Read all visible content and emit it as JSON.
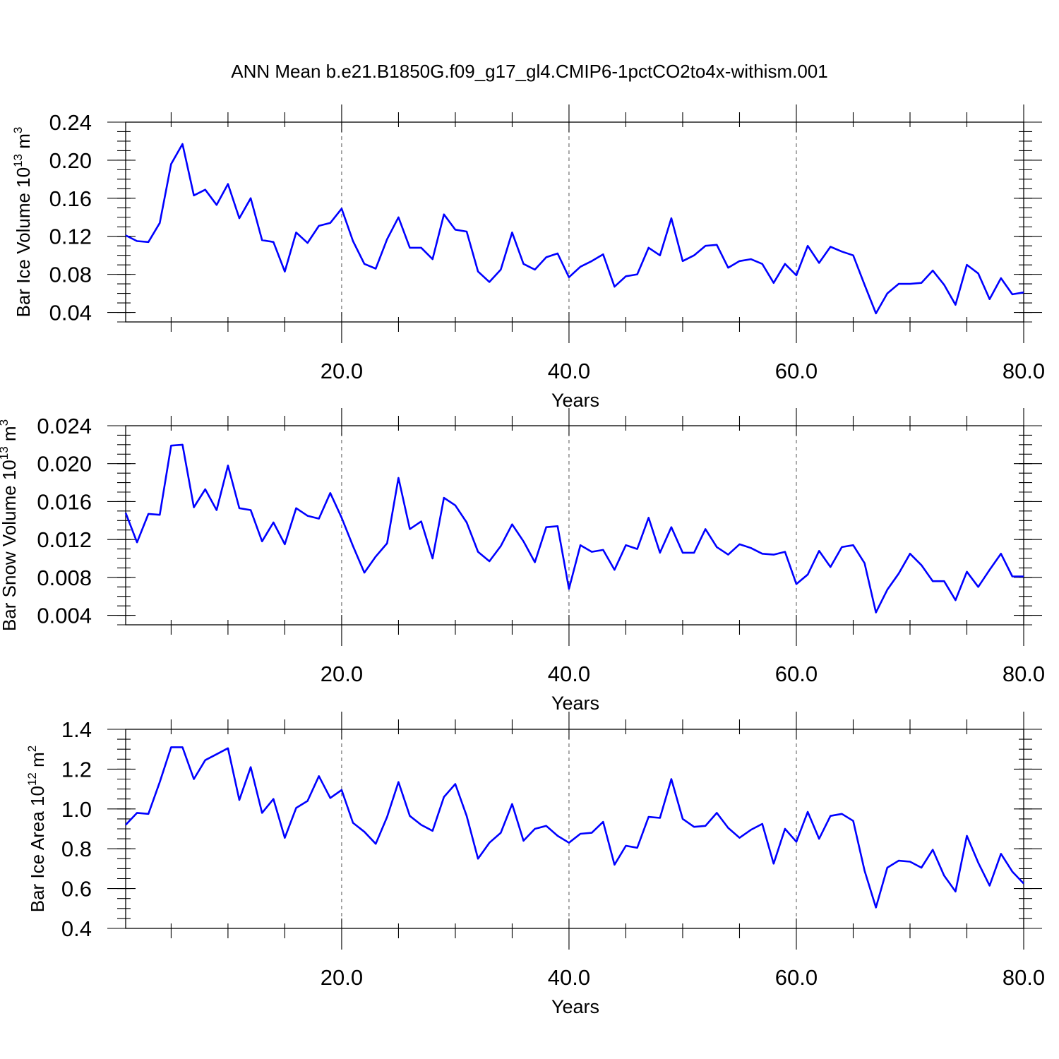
{
  "title": "ANN Mean b.e21.B1850G.f09_g17_gl4.CMIP6-1pctCO2to4x-withism.001",
  "chart_data": [
    {
      "type": "line",
      "ylabel": {
        "main": "Bar Ice Volume 10",
        "exp": "13",
        "unit": " m",
        "unit_exp": "3"
      },
      "xlabel": "Years",
      "xlim": [
        1,
        80
      ],
      "ylim": [
        0.03,
        0.24
      ],
      "yticks": [
        0.04,
        0.08,
        0.12,
        0.16,
        0.2,
        0.24
      ],
      "ytick_labels": [
        "0.04",
        "0.08",
        "0.12",
        "0.16",
        "0.20",
        "0.24"
      ],
      "yminor_step": 0.01,
      "xticks": [
        20,
        40,
        60,
        80
      ],
      "xtick_labels": [
        "20.0",
        "40.0",
        "60.0",
        "80.0"
      ],
      "grid_x": [
        20,
        40,
        60
      ],
      "color": "#0000ff",
      "x": [
        1,
        2,
        3,
        4,
        5,
        6,
        7,
        8,
        9,
        10,
        11,
        12,
        13,
        14,
        15,
        16,
        17,
        18,
        19,
        20,
        21,
        22,
        23,
        24,
        25,
        26,
        27,
        28,
        29,
        30,
        31,
        32,
        33,
        34,
        35,
        36,
        37,
        38,
        39,
        40,
        41,
        42,
        43,
        44,
        45,
        46,
        47,
        48,
        49,
        50,
        51,
        52,
        53,
        54,
        55,
        56,
        57,
        58,
        59,
        60,
        61,
        62,
        63,
        64,
        65,
        66,
        67,
        68,
        69,
        70,
        71,
        72,
        73,
        74,
        75,
        76,
        77,
        78,
        79,
        80
      ],
      "values": [
        0.121,
        0.115,
        0.114,
        0.134,
        0.196,
        0.217,
        0.163,
        0.169,
        0.153,
        0.175,
        0.139,
        0.16,
        0.116,
        0.114,
        0.083,
        0.124,
        0.113,
        0.131,
        0.134,
        0.149,
        0.115,
        0.091,
        0.086,
        0.117,
        0.14,
        0.108,
        0.108,
        0.096,
        0.143,
        0.127,
        0.125,
        0.083,
        0.072,
        0.085,
        0.124,
        0.091,
        0.085,
        0.098,
        0.102,
        0.077,
        0.088,
        0.094,
        0.101,
        0.067,
        0.078,
        0.08,
        0.108,
        0.1,
        0.139,
        0.094,
        0.1,
        0.11,
        0.111,
        0.087,
        0.094,
        0.096,
        0.091,
        0.071,
        0.091,
        0.079,
        0.11,
        0.092,
        0.109,
        0.104,
        0.1,
        0.069,
        0.039,
        0.06,
        0.07,
        0.07,
        0.071,
        0.084,
        0.069,
        0.048,
        0.09,
        0.081,
        0.054,
        0.076,
        0.059,
        0.061
      ]
    },
    {
      "type": "line",
      "ylabel": {
        "main": "Bar Snow Volume 10",
        "exp": "13",
        "unit": " m",
        "unit_exp": "3"
      },
      "xlabel": "Years",
      "xlim": [
        1,
        80
      ],
      "ylim": [
        0.003,
        0.024
      ],
      "yticks": [
        0.004,
        0.008,
        0.012,
        0.016,
        0.02,
        0.024
      ],
      "ytick_labels": [
        "0.004",
        "0.008",
        "0.012",
        "0.016",
        "0.020",
        "0.024"
      ],
      "yminor_step": 0.001,
      "xticks": [
        20,
        40,
        60,
        80
      ],
      "xtick_labels": [
        "20.0",
        "40.0",
        "60.0",
        "80.0"
      ],
      "grid_x": [
        20,
        40,
        60
      ],
      "color": "#0000ff",
      "x": [
        1,
        2,
        3,
        4,
        5,
        6,
        7,
        8,
        9,
        10,
        11,
        12,
        13,
        14,
        15,
        16,
        17,
        18,
        19,
        20,
        21,
        22,
        23,
        24,
        25,
        26,
        27,
        28,
        29,
        30,
        31,
        32,
        33,
        34,
        35,
        36,
        37,
        38,
        39,
        40,
        41,
        42,
        43,
        44,
        45,
        46,
        47,
        48,
        49,
        50,
        51,
        52,
        53,
        54,
        55,
        56,
        57,
        58,
        59,
        60,
        61,
        62,
        63,
        64,
        65,
        66,
        67,
        68,
        69,
        70,
        71,
        72,
        73,
        74,
        75,
        76,
        77,
        78,
        79,
        80
      ],
      "values": [
        0.0148,
        0.0117,
        0.0147,
        0.0146,
        0.0219,
        0.022,
        0.0154,
        0.0173,
        0.0151,
        0.0198,
        0.0153,
        0.0151,
        0.0118,
        0.0138,
        0.0115,
        0.0153,
        0.0145,
        0.0142,
        0.0169,
        0.0143,
        0.0113,
        0.0085,
        0.0102,
        0.0116,
        0.0185,
        0.0131,
        0.0139,
        0.01,
        0.0164,
        0.0156,
        0.0138,
        0.0107,
        0.0097,
        0.0113,
        0.0136,
        0.0118,
        0.0096,
        0.0133,
        0.0134,
        0.0068,
        0.0114,
        0.0107,
        0.0109,
        0.0088,
        0.0114,
        0.011,
        0.0143,
        0.0106,
        0.0133,
        0.0106,
        0.0106,
        0.0131,
        0.0112,
        0.0104,
        0.0115,
        0.0111,
        0.0105,
        0.0104,
        0.0107,
        0.0073,
        0.0083,
        0.0108,
        0.0091,
        0.0112,
        0.0114,
        0.0095,
        0.0043,
        0.0067,
        0.0084,
        0.0105,
        0.0093,
        0.0076,
        0.0076,
        0.0056,
        0.0086,
        0.007,
        0.0088,
        0.0105,
        0.0081,
        0.0081
      ]
    },
    {
      "type": "line",
      "ylabel": {
        "main": "Bar Ice Area 10",
        "exp": "12",
        "unit": " m",
        "unit_exp": "2"
      },
      "xlabel": "Years",
      "xlim": [
        1,
        80
      ],
      "ylim": [
        0.4,
        1.4
      ],
      "yticks": [
        0.4,
        0.6,
        0.8,
        1.0,
        1.2,
        1.4
      ],
      "ytick_labels": [
        "0.4",
        "0.6",
        "0.8",
        "1.0",
        "1.2",
        "1.4"
      ],
      "yminor_step": 0.05,
      "xticks": [
        20,
        40,
        60,
        80
      ],
      "xtick_labels": [
        "20.0",
        "40.0",
        "60.0",
        "80.0"
      ],
      "grid_x": [
        20,
        40,
        60
      ],
      "color": "#0000ff",
      "x": [
        1,
        2,
        3,
        4,
        5,
        6,
        7,
        8,
        9,
        10,
        11,
        12,
        13,
        14,
        15,
        16,
        17,
        18,
        19,
        20,
        21,
        22,
        23,
        24,
        25,
        26,
        27,
        28,
        29,
        30,
        31,
        32,
        33,
        34,
        35,
        36,
        37,
        38,
        39,
        40,
        41,
        42,
        43,
        44,
        45,
        46,
        47,
        48,
        49,
        50,
        51,
        52,
        53,
        54,
        55,
        56,
        57,
        58,
        59,
        60,
        61,
        62,
        63,
        64,
        65,
        66,
        67,
        68,
        69,
        70,
        71,
        72,
        73,
        74,
        75,
        76,
        77,
        78,
        79,
        80
      ],
      "values": [
        0.92,
        0.98,
        0.975,
        1.135,
        1.31,
        1.31,
        1.15,
        1.245,
        1.275,
        1.305,
        1.045,
        1.21,
        0.98,
        1.05,
        0.855,
        1.005,
        1.04,
        1.165,
        1.055,
        1.095,
        0.93,
        0.885,
        0.825,
        0.96,
        1.135,
        0.965,
        0.92,
        0.89,
        1.06,
        1.125,
        0.965,
        0.75,
        0.83,
        0.88,
        1.025,
        0.84,
        0.9,
        0.915,
        0.865,
        0.83,
        0.875,
        0.88,
        0.935,
        0.72,
        0.815,
        0.805,
        0.96,
        0.955,
        1.15,
        0.95,
        0.91,
        0.915,
        0.98,
        0.905,
        0.855,
        0.895,
        0.925,
        0.725,
        0.9,
        0.835,
        0.985,
        0.85,
        0.965,
        0.975,
        0.94,
        0.69,
        0.505,
        0.705,
        0.74,
        0.735,
        0.705,
        0.795,
        0.665,
        0.585,
        0.865,
        0.73,
        0.615,
        0.775,
        0.685,
        0.625
      ]
    }
  ]
}
